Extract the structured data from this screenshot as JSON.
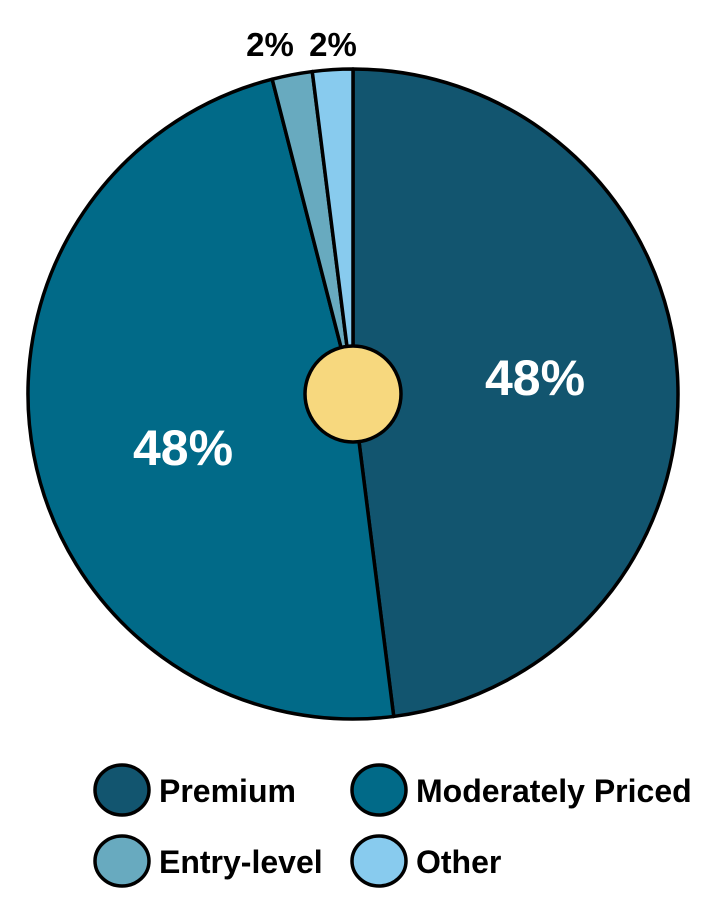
{
  "chart_data": {
    "type": "pie",
    "title": "",
    "start_angle_deg": 0,
    "direction": "clockwise",
    "slices": [
      {
        "name": "Premium",
        "value": 48,
        "label": "48%",
        "color": "#12556f"
      },
      {
        "name": "Moderately Priced",
        "value": 48,
        "label": "48%",
        "color": "#016a88"
      },
      {
        "name": "Entry-level",
        "value": 2,
        "label": "2%",
        "color": "#68aabf"
      },
      {
        "name": "Other",
        "value": 2,
        "label": "2%",
        "color": "#88cbee"
      }
    ],
    "center_hole_color": "#f7d87e",
    "legend": {
      "placement": "bottom",
      "columns": 2
    }
  }
}
